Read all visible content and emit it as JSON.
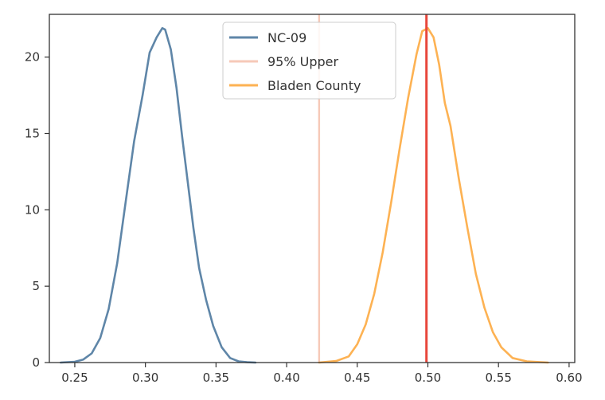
{
  "chart_data": {
    "type": "line",
    "title": "",
    "xlabel": "",
    "ylabel": "",
    "xlim": [
      0.232,
      0.604
    ],
    "ylim": [
      0,
      22.8
    ],
    "xticks": [
      0.25,
      0.3,
      0.35,
      0.4,
      0.45,
      0.5,
      0.55,
      0.6
    ],
    "xtick_labels": [
      "0.25",
      "0.30",
      "0.35",
      "0.40",
      "0.45",
      "0.50",
      "0.55",
      "0.60"
    ],
    "yticks": [
      0,
      5,
      10,
      15,
      20
    ],
    "ytick_labels": [
      "0",
      "5",
      "10",
      "15",
      "20"
    ],
    "grid": false,
    "legend": "upper-center",
    "series": [
      {
        "name": "NC-09",
        "color": "#5f86a8",
        "x": [
          0.24,
          0.25,
          0.256,
          0.262,
          0.268,
          0.274,
          0.28,
          0.286,
          0.292,
          0.298,
          0.303,
          0.308,
          0.312,
          0.314,
          0.318,
          0.322,
          0.326,
          0.33,
          0.334,
          0.338,
          0.343,
          0.348,
          0.354,
          0.36,
          0.366,
          0.372,
          0.378
        ],
        "y": [
          0.0,
          0.05,
          0.2,
          0.6,
          1.6,
          3.5,
          6.5,
          10.5,
          14.5,
          17.5,
          20.3,
          21.3,
          21.9,
          21.8,
          20.5,
          18.0,
          14.8,
          11.8,
          8.8,
          6.2,
          4.1,
          2.4,
          1.0,
          0.3,
          0.08,
          0.02,
          0.0
        ]
      },
      {
        "name": "95% Upper",
        "color": "#f6c9b8",
        "x_value": 0.423
      },
      {
        "name": "Bladen County",
        "color": "#fdb253",
        "x": [
          0.423,
          0.435,
          0.444,
          0.45,
          0.456,
          0.462,
          0.468,
          0.474,
          0.48,
          0.486,
          0.492,
          0.496,
          0.5,
          0.504,
          0.508,
          0.512,
          0.516,
          0.522,
          0.528,
          0.534,
          0.54,
          0.546,
          0.552,
          0.56,
          0.57,
          0.585
        ],
        "y": [
          0.0,
          0.1,
          0.4,
          1.2,
          2.5,
          4.5,
          7.2,
          10.5,
          14.0,
          17.3,
          20.2,
          21.7,
          21.9,
          21.3,
          19.5,
          17.0,
          15.5,
          12.0,
          8.8,
          5.8,
          3.6,
          2.0,
          1.0,
          0.3,
          0.08,
          0.0
        ]
      }
    ],
    "annotations": [
      {
        "type": "vline",
        "x": 0.499,
        "color": "#e8473b"
      }
    ]
  }
}
